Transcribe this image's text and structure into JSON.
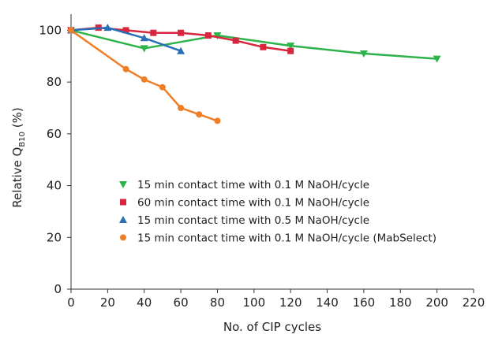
{
  "chart_data": {
    "type": "line",
    "title": "",
    "xlabel": "No. of CIP cycles",
    "ylabel": {
      "main": "Relative Q",
      "subscript": "B10",
      "suffix": " (%)"
    },
    "xlim": [
      0,
      220
    ],
    "ylim": [
      0,
      105
    ],
    "xticks": [
      0,
      20,
      40,
      60,
      80,
      100,
      120,
      140,
      160,
      180,
      200,
      220
    ],
    "yticks": [
      0,
      20,
      40,
      60,
      80,
      100
    ],
    "grid": false,
    "legend_position": "center-right",
    "series": [
      {
        "name": "15 min contact time with 0.1 M NaOH/cycle",
        "color": "#2db34a",
        "marker": "triangle-down",
        "x": [
          0,
          40,
          80,
          120,
          160,
          200
        ],
        "y": [
          100,
          93,
          98,
          94,
          91,
          89
        ]
      },
      {
        "name": "60 min contact time with 0.1 M NaOH/cycle",
        "color": "#d7263d",
        "marker": "square",
        "x": [
          0,
          15,
          30,
          45,
          60,
          75,
          90,
          105,
          120
        ],
        "y": [
          100,
          101,
          100,
          99,
          99,
          98,
          96,
          93.5,
          92
        ]
      },
      {
        "name": "15 min contact time with 0.5 M NaOH/cycle",
        "color": "#2a6fb5",
        "marker": "triangle-up",
        "x": [
          0,
          20,
          40,
          60
        ],
        "y": [
          100,
          101,
          97,
          92
        ]
      },
      {
        "name": "15 min contact time with 0.1 M NaOH/cycle (MabSelect)",
        "color": "#f07e26",
        "marker": "circle",
        "x": [
          0,
          30,
          40,
          50,
          60,
          70,
          80
        ],
        "y": [
          100,
          85,
          81,
          78,
          70,
          67.5,
          65
        ]
      }
    ]
  }
}
